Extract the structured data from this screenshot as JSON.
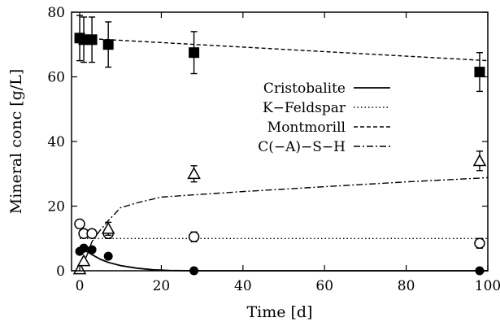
{
  "chart_data": {
    "type": "scatter",
    "title": "",
    "xlabel": "Time [d]",
    "ylabel": "Mineral conc [g/L]",
    "xlim": [
      -2,
      100
    ],
    "ylim": [
      0,
      80
    ],
    "x_ticks": [
      "0",
      "20",
      "40",
      "60",
      "80",
      "100"
    ],
    "x_tick_values": [
      0,
      20,
      40,
      60,
      80,
      100
    ],
    "y_ticks": [
      "0",
      "20",
      "40",
      "60",
      "80"
    ],
    "y_tick_values": [
      0,
      20,
      40,
      60,
      80
    ],
    "grid": false,
    "legend_position": "center-right",
    "legend": [
      {
        "label": "Cristobalite",
        "line_style": "solid"
      },
      {
        "label": "K−Feldspar",
        "line_style": "dotted"
      },
      {
        "label": "Montmorill",
        "line_style": "dashed"
      },
      {
        "label": "C(−A)−S−H",
        "line_style": "dashdot"
      }
    ],
    "model_curves": [
      {
        "name": "Cristobalite",
        "line_style": "solid",
        "x": [
          0,
          1,
          2,
          3,
          5,
          7,
          10,
          14,
          18,
          22,
          28,
          40,
          60,
          80,
          100
        ],
        "y": [
          6.5,
          6.3,
          5.8,
          5.0,
          3.6,
          2.6,
          1.6,
          0.8,
          0.3,
          0.1,
          0.0,
          0.0,
          0.0,
          0.0,
          0.0
        ]
      },
      {
        "name": "K−Feldspar",
        "line_style": "dotted",
        "x": [
          0,
          100
        ],
        "y": [
          10,
          10
        ]
      },
      {
        "name": "Montmorill",
        "line_style": "dashed",
        "x": [
          0,
          100
        ],
        "y": [
          72,
          65
        ]
      },
      {
        "name": "C(−A)−S−H",
        "line_style": "dashdot",
        "x": [
          0,
          1,
          2,
          3,
          5,
          7,
          10,
          14,
          20,
          28,
          40,
          60,
          80,
          100
        ],
        "y": [
          0.5,
          2.5,
          5.5,
          9.0,
          12.5,
          15.5,
          19.5,
          21.0,
          22.8,
          23.5,
          24.5,
          26.0,
          27.5,
          28.8
        ]
      }
    ],
    "measurements": [
      {
        "name": "Cristobalite",
        "marker": "filled-circle",
        "x": [
          0,
          1,
          3,
          7,
          28,
          98
        ],
        "y": [
          6,
          7,
          6.5,
          4.5,
          0,
          0
        ],
        "err": [
          0,
          0,
          0,
          0,
          0,
          0
        ]
      },
      {
        "name": "K−Feldspar",
        "marker": "open-circle",
        "x": [
          0,
          1,
          3,
          7,
          28,
          98
        ],
        "y": [
          14.5,
          11.5,
          11.5,
          11.5,
          10.5,
          8.5
        ],
        "err": [
          0,
          0,
          0,
          1.5,
          1.5,
          1.5
        ]
      },
      {
        "name": "Montmorill",
        "marker": "filled-square",
        "x": [
          0,
          1,
          3,
          7,
          28,
          98
        ],
        "y": [
          72,
          71.5,
          71.5,
          70,
          67.5,
          61.5
        ],
        "err": [
          7,
          7,
          7,
          7,
          6.5,
          6
        ]
      },
      {
        "name": "C(−A)−S−H",
        "marker": "open-triangle",
        "x": [
          0,
          1,
          7,
          28,
          98
        ],
        "y": [
          0.5,
          3,
          13,
          30,
          34
        ],
        "err": [
          0,
          0,
          2,
          2.5,
          3
        ]
      }
    ]
  }
}
